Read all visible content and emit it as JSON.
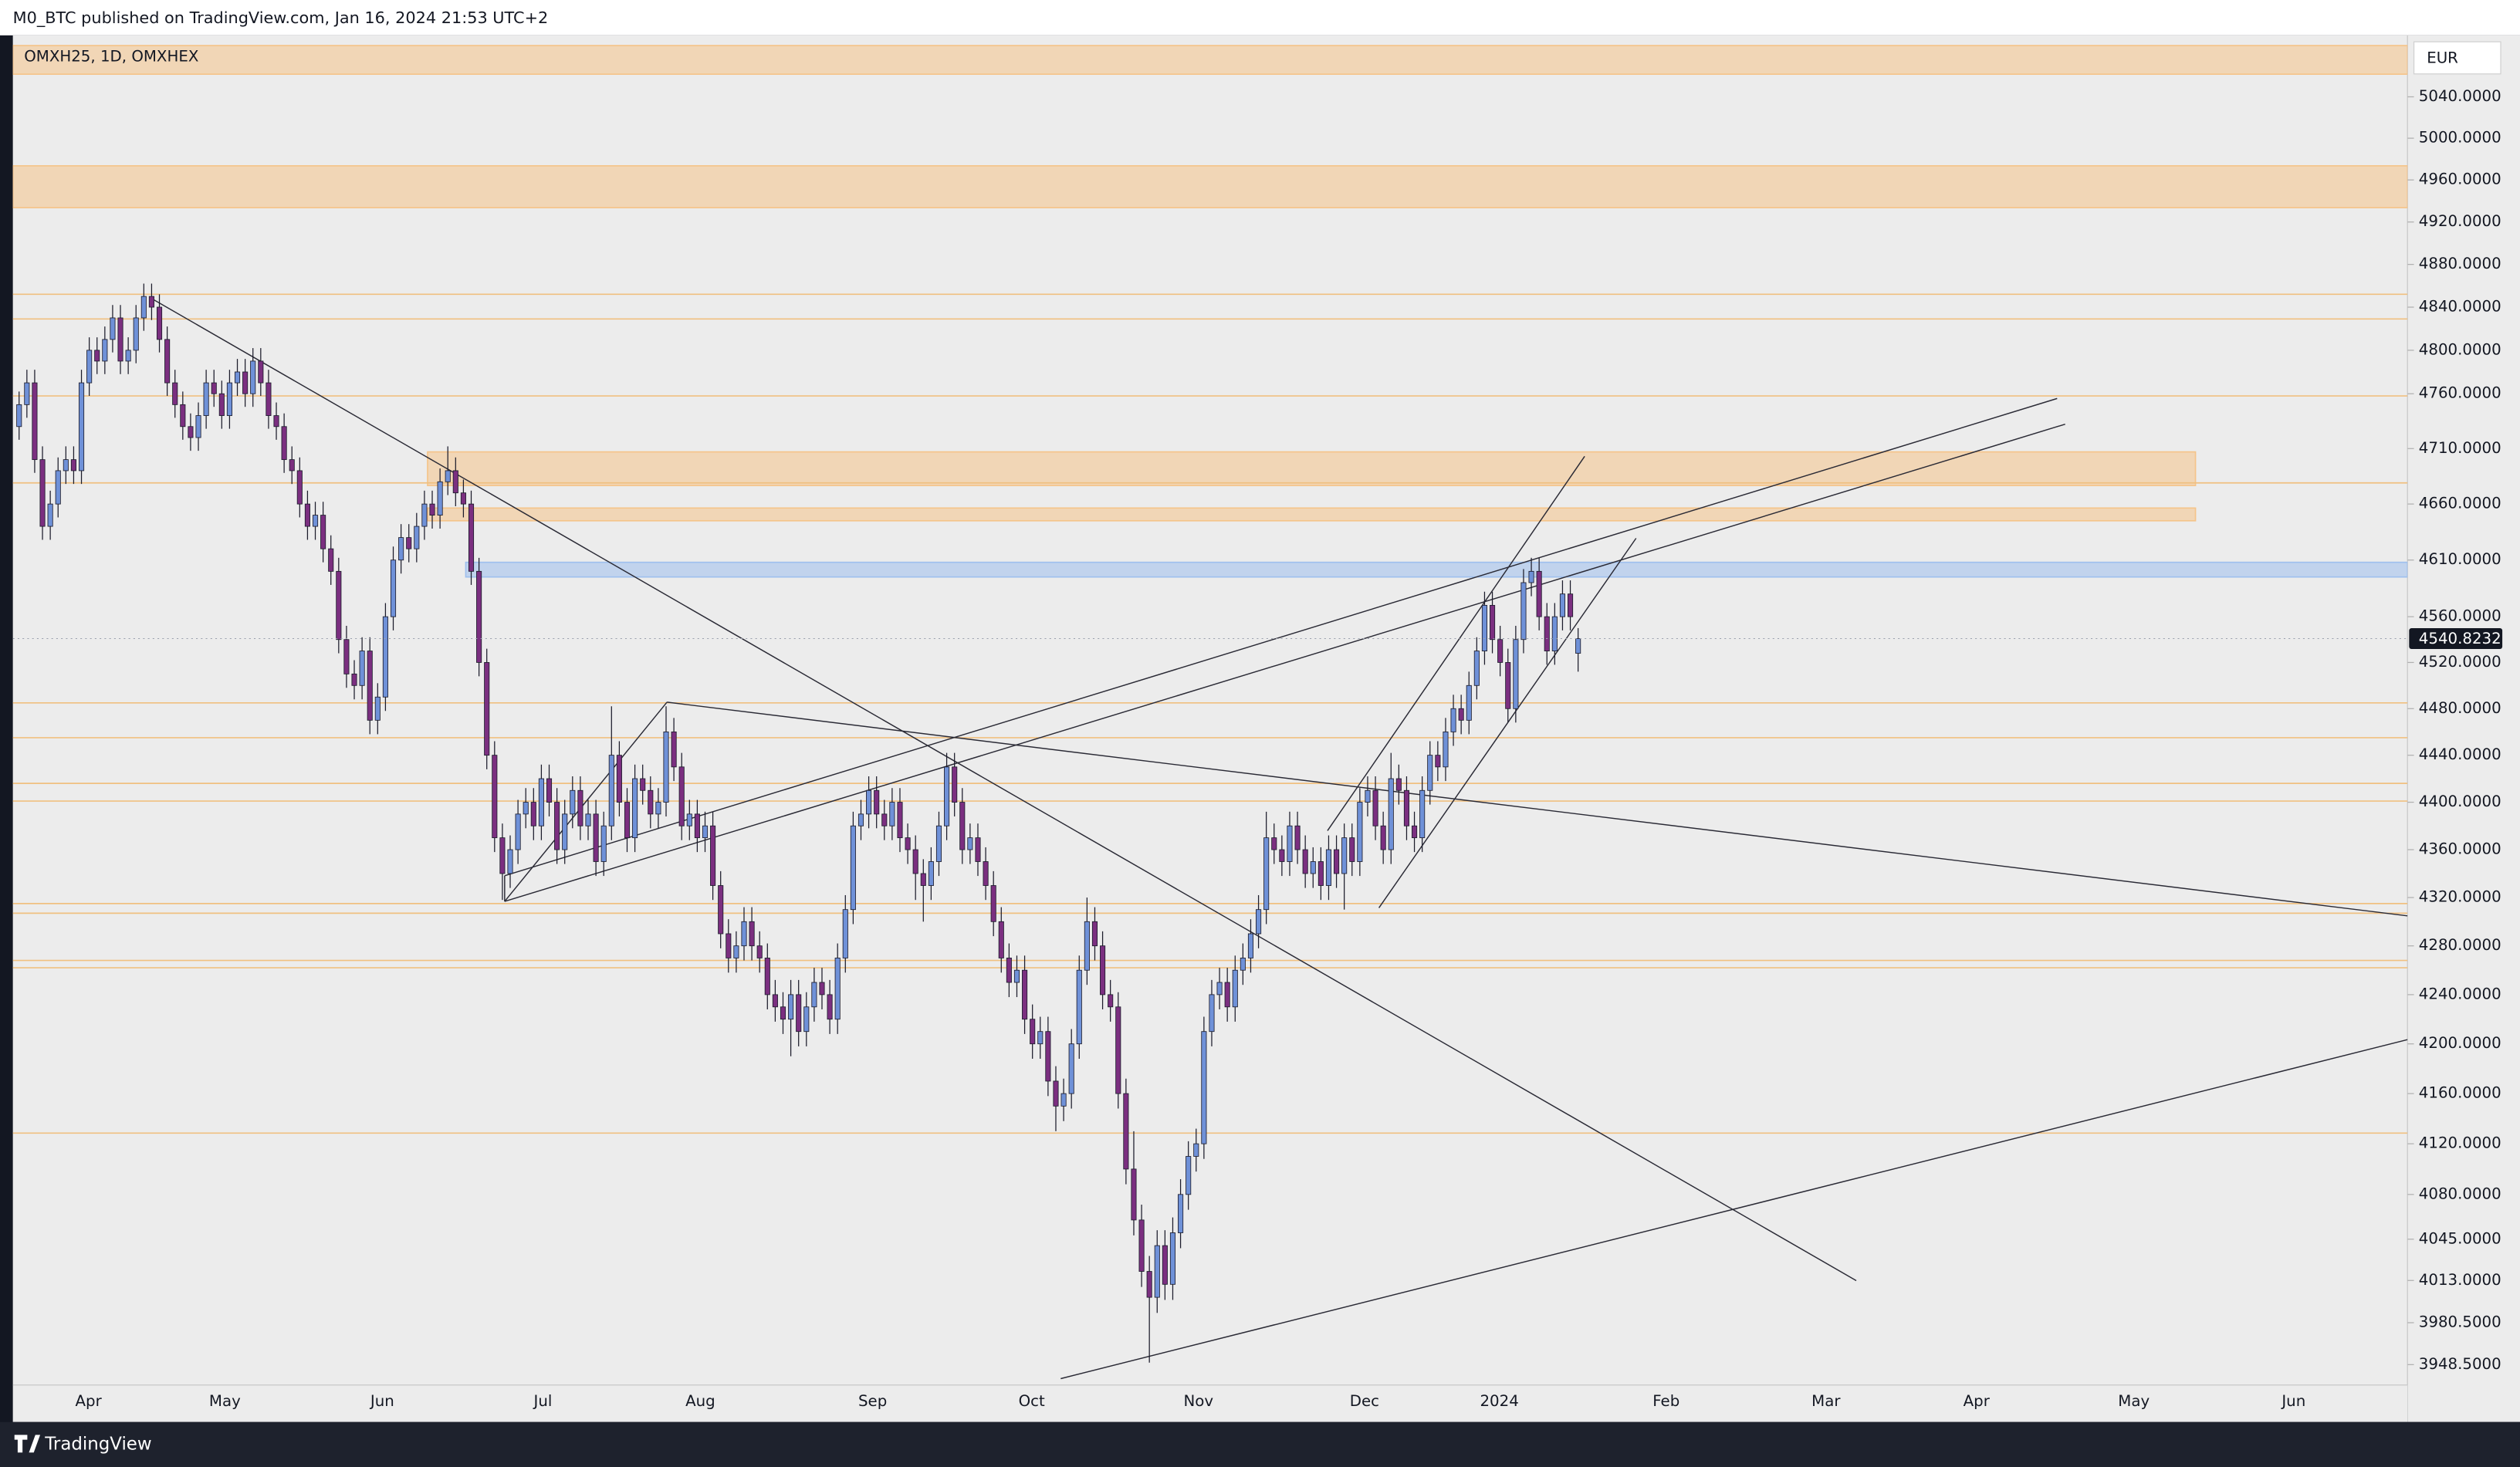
{
  "header": {
    "text": "M0_BTC published on TradingView.com, Jan 16, 2024 21:53 UTC+2"
  },
  "footer": {
    "brand": "TradingView"
  },
  "chart_data": {
    "type": "candlestick",
    "title": "OMXH25, 1D, OMXHEX",
    "currency": "EUR",
    "log_scale": true,
    "grid": false,
    "colors": {
      "up": "#6f91d8",
      "down": "#7b2f80",
      "wick": "#1c1c2b",
      "level": "#f0c080",
      "zone": "#f5c48a",
      "zone_alt": "#9fc0ee"
    },
    "ylim": [
      3933,
      5100
    ],
    "yticks": [
      {
        "value": 5040,
        "label": "5040.0000"
      },
      {
        "value": 5000,
        "label": "5000.0000"
      },
      {
        "value": 4960,
        "label": "4960.0000"
      },
      {
        "value": 4920,
        "label": "4920.0000"
      },
      {
        "value": 4880,
        "label": "4880.0000"
      },
      {
        "value": 4840,
        "label": "4840.0000"
      },
      {
        "value": 4800,
        "label": "4800.0000"
      },
      {
        "value": 4760,
        "label": "4760.0000"
      },
      {
        "value": 4710,
        "label": "4710.0000"
      },
      {
        "value": 4660,
        "label": "4660.0000"
      },
      {
        "value": 4610,
        "label": "4610.0000"
      },
      {
        "value": 4560,
        "label": "4560.0000"
      },
      {
        "value": 4520,
        "label": "4520.0000"
      },
      {
        "value": 4480,
        "label": "4480.0000"
      },
      {
        "value": 4440,
        "label": "4440.0000"
      },
      {
        "value": 4400,
        "label": "4400.0000"
      },
      {
        "value": 4360,
        "label": "4360.0000"
      },
      {
        "value": 4320,
        "label": "4320.0000"
      },
      {
        "value": 4280,
        "label": "4280.0000"
      },
      {
        "value": 4240,
        "label": "4240.0000"
      },
      {
        "value": 4200,
        "label": "4200.0000"
      },
      {
        "value": 4160,
        "label": "4160.0000"
      },
      {
        "value": 4120,
        "label": "4120.0000"
      },
      {
        "value": 4080,
        "label": "4080.0000"
      },
      {
        "value": 4045,
        "label": "4045.0000"
      },
      {
        "value": 4013,
        "label": "4013.0000"
      },
      {
        "value": 3980.5,
        "label": "3980.5000"
      },
      {
        "value": 3948.5,
        "label": "3948.5000"
      }
    ],
    "xlim": [
      -0.8,
      306.4
    ],
    "xticks": [
      {
        "value": 8.9,
        "label": "Apr"
      },
      {
        "value": 26.4,
        "label": "May"
      },
      {
        "value": 46.6,
        "label": "Jun"
      },
      {
        "value": 67.2,
        "label": "Jul"
      },
      {
        "value": 87.4,
        "label": "Aug"
      },
      {
        "value": 109.5,
        "label": "Sep"
      },
      {
        "value": 129.9,
        "label": "Oct"
      },
      {
        "value": 151.3,
        "label": "Nov"
      },
      {
        "value": 172.6,
        "label": "Dec"
      },
      {
        "value": 189.9,
        "label": "2024"
      },
      {
        "value": 211.3,
        "label": "Feb"
      },
      {
        "value": 231.8,
        "label": "Mar"
      },
      {
        "value": 251.1,
        "label": "Apr"
      },
      {
        "value": 271.3,
        "label": "May"
      },
      {
        "value": 291.8,
        "label": "Jun"
      }
    ],
    "levels": [
      4852,
      4829,
      4758,
      4679,
      4485,
      4455,
      4416,
      4401,
      4315,
      4307,
      4268,
      4262,
      4128.5
    ],
    "zones": [
      {
        "low": 5062,
        "high": 5090,
        "color": "zone"
      },
      {
        "low": 4933.6,
        "high": 4973.5,
        "color": "zone"
      },
      {
        "low": 4676.6,
        "high": 4707,
        "from": 52.4,
        "to": 279.2,
        "color": "zone"
      },
      {
        "low": 4645,
        "high": 4656.4,
        "from": 52.4,
        "to": 279.2,
        "color": "zone"
      },
      {
        "low": 4595,
        "high": 4608,
        "from": 57.3,
        "color": "zone_alt"
      }
    ],
    "ohlc": [
      [
        4730,
        4762,
        4718,
        4750
      ],
      [
        4750,
        4782,
        4738,
        4770
      ],
      [
        4770,
        4782,
        4688,
        4700
      ],
      [
        4700,
        4712,
        4628,
        4640
      ],
      [
        4640,
        4672,
        4628,
        4660
      ],
      [
        4660,
        4702,
        4648,
        4690
      ],
      [
        4690,
        4712,
        4678,
        4700
      ],
      [
        4700,
        4712,
        4678,
        4690
      ],
      [
        4690,
        4782,
        4678,
        4770
      ],
      [
        4770,
        4812,
        4758,
        4800
      ],
      [
        4800,
        4812,
        4778,
        4790
      ],
      [
        4790,
        4822,
        4778,
        4810
      ],
      [
        4810,
        4842,
        4798,
        4830
      ],
      [
        4830,
        4842,
        4778,
        4790
      ],
      [
        4790,
        4812,
        4778,
        4800
      ],
      [
        4800,
        4842,
        4788,
        4830
      ],
      [
        4830,
        4862,
        4818,
        4850
      ],
      [
        4850,
        4862,
        4828,
        4840
      ],
      [
        4840,
        4852,
        4798,
        4810
      ],
      [
        4810,
        4822,
        4758,
        4770
      ],
      [
        4770,
        4782,
        4738,
        4750
      ],
      [
        4750,
        4762,
        4718,
        4730
      ],
      [
        4730,
        4742,
        4708,
        4720
      ],
      [
        4720,
        4752,
        4708,
        4740
      ],
      [
        4740,
        4782,
        4728,
        4770
      ],
      [
        4770,
        4782,
        4748,
        4760
      ],
      [
        4760,
        4772,
        4728,
        4740
      ],
      [
        4740,
        4782,
        4728,
        4770
      ],
      [
        4770,
        4792,
        4758,
        4780
      ],
      [
        4780,
        4792,
        4748,
        4760
      ],
      [
        4760,
        4802,
        4748,
        4790
      ],
      [
        4790,
        4802,
        4758,
        4770
      ],
      [
        4770,
        4782,
        4728,
        4740
      ],
      [
        4740,
        4752,
        4718,
        4730
      ],
      [
        4730,
        4742,
        4688,
        4700
      ],
      [
        4700,
        4712,
        4678,
        4690
      ],
      [
        4690,
        4702,
        4648,
        4660
      ],
      [
        4660,
        4672,
        4628,
        4640
      ],
      [
        4640,
        4662,
        4628,
        4650
      ],
      [
        4650,
        4662,
        4608,
        4620
      ],
      [
        4620,
        4632,
        4588,
        4600
      ],
      [
        4600,
        4612,
        4528,
        4540
      ],
      [
        4540,
        4552,
        4498,
        4510
      ],
      [
        4510,
        4522,
        4488,
        4500
      ],
      [
        4500,
        4542,
        4488,
        4530
      ],
      [
        4530,
        4542,
        4458,
        4470
      ],
      [
        4470,
        4502,
        4458,
        4490
      ],
      [
        4490,
        4572,
        4478,
        4560
      ],
      [
        4560,
        4622,
        4548,
        4610
      ],
      [
        4610,
        4642,
        4598,
        4630
      ],
      [
        4630,
        4642,
        4608,
        4620
      ],
      [
        4620,
        4652,
        4608,
        4640
      ],
      [
        4640,
        4672,
        4628,
        4660
      ],
      [
        4660,
        4672,
        4638,
        4650
      ],
      [
        4650,
        4692,
        4638,
        4680
      ],
      [
        4680,
        4712,
        4668,
        4690
      ],
      [
        4690,
        4702,
        4658,
        4670
      ],
      [
        4670,
        4682,
        4648,
        4660
      ],
      [
        4660,
        4672,
        4588,
        4600
      ],
      [
        4600,
        4612,
        4508,
        4520
      ],
      [
        4520,
        4532,
        4428,
        4440
      ],
      [
        4440,
        4452,
        4358,
        4370
      ],
      [
        4370,
        4382,
        4318,
        4340
      ],
      [
        4340,
        4372,
        4328,
        4360
      ],
      [
        4360,
        4402,
        4348,
        4390
      ],
      [
        4390,
        4412,
        4378,
        4400
      ],
      [
        4400,
        4412,
        4368,
        4380
      ],
      [
        4380,
        4432,
        4368,
        4420
      ],
      [
        4420,
        4432,
        4388,
        4400
      ],
      [
        4400,
        4412,
        4348,
        4360
      ],
      [
        4360,
        4402,
        4348,
        4390
      ],
      [
        4390,
        4422,
        4378,
        4410
      ],
      [
        4410,
        4422,
        4368,
        4380
      ],
      [
        4380,
        4402,
        4368,
        4390
      ],
      [
        4390,
        4402,
        4338,
        4350
      ],
      [
        4350,
        4392,
        4338,
        4380
      ],
      [
        4380,
        4482,
        4368,
        4440
      ],
      [
        4440,
        4452,
        4388,
        4400
      ],
      [
        4400,
        4412,
        4358,
        4370
      ],
      [
        4370,
        4432,
        4358,
        4420
      ],
      [
        4420,
        4432,
        4398,
        4410
      ],
      [
        4410,
        4422,
        4378,
        4390
      ],
      [
        4390,
        4412,
        4378,
        4400
      ],
      [
        4400,
        4482,
        4388,
        4460
      ],
      [
        4460,
        4472,
        4418,
        4430
      ],
      [
        4430,
        4442,
        4368,
        4380
      ],
      [
        4380,
        4402,
        4368,
        4390
      ],
      [
        4390,
        4402,
        4358,
        4370
      ],
      [
        4370,
        4392,
        4358,
        4380
      ],
      [
        4380,
        4392,
        4318,
        4330
      ],
      [
        4330,
        4342,
        4278,
        4290
      ],
      [
        4290,
        4302,
        4258,
        4270
      ],
      [
        4270,
        4292,
        4258,
        4280
      ],
      [
        4280,
        4312,
        4268,
        4300
      ],
      [
        4300,
        4312,
        4268,
        4280
      ],
      [
        4280,
        4292,
        4258,
        4270
      ],
      [
        4270,
        4282,
        4228,
        4240
      ],
      [
        4240,
        4252,
        4218,
        4230
      ],
      [
        4230,
        4242,
        4208,
        4220
      ],
      [
        4220,
        4252,
        4190,
        4240
      ],
      [
        4240,
        4252,
        4198,
        4210
      ],
      [
        4210,
        4242,
        4198,
        4230
      ],
      [
        4230,
        4262,
        4218,
        4250
      ],
      [
        4250,
        4262,
        4228,
        4240
      ],
      [
        4240,
        4252,
        4208,
        4220
      ],
      [
        4220,
        4282,
        4208,
        4270
      ],
      [
        4270,
        4322,
        4258,
        4310
      ],
      [
        4310,
        4392,
        4298,
        4380
      ],
      [
        4380,
        4402,
        4368,
        4390
      ],
      [
        4390,
        4422,
        4378,
        4410
      ],
      [
        4410,
        4422,
        4378,
        4390
      ],
      [
        4390,
        4402,
        4368,
        4380
      ],
      [
        4380,
        4412,
        4368,
        4400
      ],
      [
        4400,
        4412,
        4358,
        4370
      ],
      [
        4370,
        4382,
        4348,
        4360
      ],
      [
        4360,
        4372,
        4318,
        4340
      ],
      [
        4340,
        4352,
        4300,
        4330
      ],
      [
        4330,
        4362,
        4318,
        4350
      ],
      [
        4350,
        4392,
        4338,
        4380
      ],
      [
        4380,
        4442,
        4368,
        4430
      ],
      [
        4430,
        4442,
        4388,
        4400
      ],
      [
        4400,
        4412,
        4348,
        4360
      ],
      [
        4360,
        4382,
        4348,
        4370
      ],
      [
        4370,
        4382,
        4338,
        4350
      ],
      [
        4350,
        4362,
        4318,
        4330
      ],
      [
        4330,
        4342,
        4288,
        4300
      ],
      [
        4300,
        4312,
        4258,
        4270
      ],
      [
        4270,
        4282,
        4238,
        4250
      ],
      [
        4250,
        4272,
        4238,
        4260
      ],
      [
        4260,
        4272,
        4208,
        4220
      ],
      [
        4220,
        4232,
        4188,
        4200
      ],
      [
        4200,
        4222,
        4188,
        4210
      ],
      [
        4210,
        4222,
        4158,
        4170
      ],
      [
        4170,
        4182,
        4130,
        4150
      ],
      [
        4150,
        4172,
        4138,
        4160
      ],
      [
        4160,
        4212,
        4148,
        4200
      ],
      [
        4200,
        4272,
        4188,
        4260
      ],
      [
        4260,
        4320,
        4248,
        4300
      ],
      [
        4300,
        4312,
        4268,
        4280
      ],
      [
        4280,
        4292,
        4228,
        4240
      ],
      [
        4240,
        4252,
        4218,
        4230
      ],
      [
        4230,
        4242,
        4148,
        4160
      ],
      [
        4160,
        4172,
        4088,
        4100
      ],
      [
        4100,
        4130,
        4048,
        4060
      ],
      [
        4060,
        4072,
        4008,
        4020
      ],
      [
        4020,
        4032,
        3950,
        4000
      ],
      [
        4000,
        4052,
        3988,
        4040
      ],
      [
        4040,
        4052,
        3998,
        4010
      ],
      [
        4010,
        4062,
        3998,
        4050
      ],
      [
        4050,
        4092,
        4038,
        4080
      ],
      [
        4080,
        4122,
        4068,
        4110
      ],
      [
        4110,
        4132,
        4098,
        4120
      ],
      [
        4120,
        4222,
        4108,
        4210
      ],
      [
        4210,
        4252,
        4198,
        4240
      ],
      [
        4240,
        4262,
        4228,
        4250
      ],
      [
        4250,
        4262,
        4218,
        4230
      ],
      [
        4230,
        4272,
        4218,
        4260
      ],
      [
        4260,
        4282,
        4248,
        4270
      ],
      [
        4270,
        4302,
        4258,
        4290
      ],
      [
        4290,
        4322,
        4278,
        4310
      ],
      [
        4310,
        4392,
        4298,
        4370
      ],
      [
        4370,
        4382,
        4348,
        4360
      ],
      [
        4360,
        4372,
        4338,
        4350
      ],
      [
        4350,
        4392,
        4338,
        4380
      ],
      [
        4380,
        4392,
        4348,
        4360
      ],
      [
        4360,
        4372,
        4328,
        4340
      ],
      [
        4340,
        4362,
        4328,
        4350
      ],
      [
        4350,
        4362,
        4318,
        4330
      ],
      [
        4330,
        4372,
        4318,
        4360
      ],
      [
        4360,
        4372,
        4328,
        4340
      ],
      [
        4340,
        4382,
        4310,
        4370
      ],
      [
        4370,
        4382,
        4338,
        4350
      ],
      [
        4350,
        4412,
        4338,
        4400
      ],
      [
        4400,
        4422,
        4388,
        4410
      ],
      [
        4410,
        4422,
        4368,
        4380
      ],
      [
        4380,
        4392,
        4348,
        4360
      ],
      [
        4360,
        4442,
        4348,
        4420
      ],
      [
        4420,
        4432,
        4398,
        4410
      ],
      [
        4410,
        4422,
        4368,
        4380
      ],
      [
        4380,
        4392,
        4358,
        4370
      ],
      [
        4370,
        4422,
        4358,
        4410
      ],
      [
        4410,
        4452,
        4398,
        4440
      ],
      [
        4440,
        4452,
        4418,
        4430
      ],
      [
        4430,
        4472,
        4418,
        4460
      ],
      [
        4460,
        4492,
        4448,
        4480
      ],
      [
        4480,
        4492,
        4458,
        4470
      ],
      [
        4470,
        4512,
        4458,
        4500
      ],
      [
        4500,
        4542,
        4488,
        4530
      ],
      [
        4530,
        4582,
        4518,
        4570
      ],
      [
        4570,
        4582,
        4528,
        4540
      ],
      [
        4540,
        4552,
        4508,
        4520
      ],
      [
        4520,
        4532,
        4468,
        4480
      ],
      [
        4480,
        4552,
        4468,
        4540
      ],
      [
        4540,
        4602,
        4528,
        4590
      ],
      [
        4590,
        4612,
        4578,
        4600
      ],
      [
        4600,
        4612,
        4548,
        4560
      ],
      [
        4560,
        4572,
        4518,
        4530
      ],
      [
        4530,
        4572,
        4518,
        4560
      ],
      [
        4560,
        4592,
        4548,
        4580
      ],
      [
        4580,
        4592,
        4548,
        4560
      ],
      [
        4528,
        4550,
        4512,
        4540.8232
      ]
    ]
  }
}
